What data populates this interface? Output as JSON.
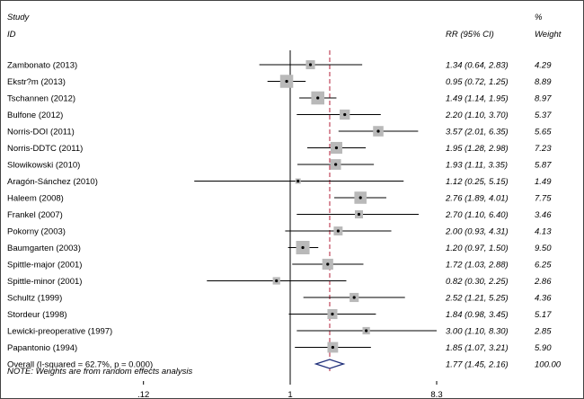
{
  "header": {
    "study_label": "Study",
    "id_label": "ID",
    "effect_label": "RR (95% CI)",
    "pct_label": "%",
    "weight_label": "Weight"
  },
  "chart_data": {
    "type": "forest",
    "scale": "log",
    "null_value": 1,
    "pooled_line_value": 1.77,
    "x_ticks": [
      {
        "value": 0.12,
        "label": ".12"
      },
      {
        "value": 1,
        "label": "1"
      },
      {
        "value": 8.3,
        "label": "8.3"
      }
    ],
    "studies": [
      {
        "id": "Zambonato (2013)",
        "rr": 1.34,
        "lo": 0.64,
        "hi": 2.83,
        "ci_text": "1.34 (0.64, 2.83)",
        "weight": 4.29,
        "weight_text": "4.29"
      },
      {
        "id": "Ekstr?m  (2013)",
        "rr": 0.95,
        "lo": 0.72,
        "hi": 1.25,
        "ci_text": "0.95 (0.72, 1.25)",
        "weight": 8.89,
        "weight_text": "8.89"
      },
      {
        "id": "Tschannen (2012)",
        "rr": 1.49,
        "lo": 1.14,
        "hi": 1.95,
        "ci_text": "1.49 (1.14, 1.95)",
        "weight": 8.97,
        "weight_text": "8.97"
      },
      {
        "id": "Bulfone (2012)",
        "rr": 2.2,
        "lo": 1.1,
        "hi": 3.7,
        "ci_text": "2.20 (1.10, 3.70)",
        "weight": 5.37,
        "weight_text": "5.37"
      },
      {
        "id": "Norris-DOI  (2011)",
        "rr": 3.57,
        "lo": 2.01,
        "hi": 6.35,
        "ci_text": "3.57 (2.01, 6.35)",
        "weight": 5.65,
        "weight_text": "5.65"
      },
      {
        "id": "Norris-DDTC (2011)",
        "rr": 1.95,
        "lo": 1.28,
        "hi": 2.98,
        "ci_text": "1.95 (1.28, 2.98)",
        "weight": 7.23,
        "weight_text": "7.23"
      },
      {
        "id": "Slowikowski (2010)",
        "rr": 1.93,
        "lo": 1.11,
        "hi": 3.35,
        "ci_text": "1.93 (1.11, 3.35)",
        "weight": 5.87,
        "weight_text": "5.87"
      },
      {
        "id": "Aragón-Sánchez (2010)",
        "rr": 1.12,
        "lo": 0.25,
        "hi": 5.15,
        "ci_text": "1.12 (0.25, 5.15)",
        "weight": 1.49,
        "weight_text": "1.49"
      },
      {
        "id": "Haleem (2008)",
        "rr": 2.76,
        "lo": 1.89,
        "hi": 4.01,
        "ci_text": "2.76 (1.89, 4.01)",
        "weight": 7.75,
        "weight_text": "7.75"
      },
      {
        "id": "Frankel (2007)",
        "rr": 2.7,
        "lo": 1.1,
        "hi": 6.4,
        "ci_text": "2.70 (1.10, 6.40)",
        "weight": 3.46,
        "weight_text": "3.46"
      },
      {
        "id": "Pokorny (2003)",
        "rr": 2.0,
        "lo": 0.93,
        "hi": 4.31,
        "ci_text": "2.00 (0.93, 4.31)",
        "weight": 4.13,
        "weight_text": "4.13"
      },
      {
        "id": "Baumgarten (2003)",
        "rr": 1.2,
        "lo": 0.97,
        "hi": 1.5,
        "ci_text": "1.20 (0.97, 1.50)",
        "weight": 9.5,
        "weight_text": "9.50"
      },
      {
        "id": "Spittle-major (2001)",
        "rr": 1.72,
        "lo": 1.03,
        "hi": 2.88,
        "ci_text": "1.72 (1.03, 2.88)",
        "weight": 6.25,
        "weight_text": "6.25"
      },
      {
        "id": "Spittle-minor (2001)",
        "rr": 0.82,
        "lo": 0.3,
        "hi": 2.25,
        "ci_text": "0.82 (0.30, 2.25)",
        "weight": 2.86,
        "weight_text": "2.86"
      },
      {
        "id": "Schultz (1999)",
        "rr": 2.52,
        "lo": 1.21,
        "hi": 5.25,
        "ci_text": "2.52 (1.21, 5.25)",
        "weight": 4.36,
        "weight_text": "4.36"
      },
      {
        "id": "Stordeur (1998)",
        "rr": 1.84,
        "lo": 0.98,
        "hi": 3.45,
        "ci_text": "1.84 (0.98, 3.45)",
        "weight": 5.17,
        "weight_text": "5.17"
      },
      {
        "id": "Lewicki-preoperative  (1997)",
        "rr": 3.0,
        "lo": 1.1,
        "hi": 8.3,
        "ci_text": "3.00 (1.10, 8.30)",
        "weight": 2.85,
        "weight_text": "2.85"
      },
      {
        "id": "Papantonio (1994)",
        "rr": 1.85,
        "lo": 1.07,
        "hi": 3.21,
        "ci_text": "1.85 (1.07, 3.21)",
        "weight": 5.9,
        "weight_text": "5.90"
      }
    ],
    "overall": {
      "id": "Overall  (I-squared = 62.7%, p = 0.000)",
      "rr": 1.77,
      "lo": 1.45,
      "hi": 2.16,
      "ci_text": "1.77 (1.45, 2.16)",
      "weight": 100.0,
      "weight_text": "100.00"
    },
    "note": "NOTE: Weights are from random effects analysis",
    "colors": {
      "box": "#b9b9b9",
      "line": "#000000",
      "diamond": "#1f2f7a",
      "pooled_line": "#b3203a"
    }
  }
}
